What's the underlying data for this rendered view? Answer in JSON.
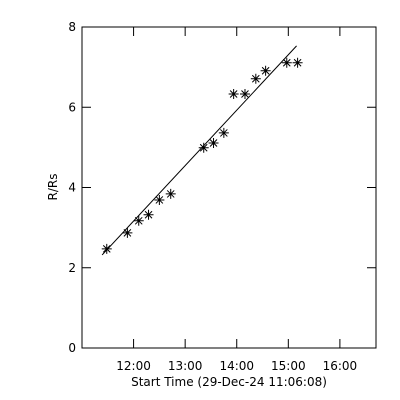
{
  "chart_data": {
    "type": "scatter",
    "x_label": "Start Time (29-Dec-24 11:06:08)",
    "y_label": "R/Rs",
    "x": [
      11.48,
      11.88,
      12.1,
      12.29,
      12.5,
      12.72,
      13.36,
      13.55,
      13.75,
      13.94,
      14.16,
      14.37,
      14.56,
      14.97,
      15.18
    ],
    "values": [
      2.47,
      2.87,
      3.17,
      3.32,
      3.69,
      3.84,
      4.99,
      5.11,
      5.36,
      6.33,
      6.33,
      6.71,
      6.91,
      7.11,
      7.11
    ],
    "color": "#000000",
    "fit": {
      "x": [
        11.39,
        15.16
      ],
      "values": [
        2.32,
        7.53
      ]
    },
    "xlim": [
      11.0,
      16.7
    ],
    "ylim": [
      0,
      8
    ],
    "xticks": [
      {
        "value": 12,
        "label": "12:00"
      },
      {
        "value": 13,
        "label": "13:00"
      },
      {
        "value": 14,
        "label": "14:00"
      },
      {
        "value": 15,
        "label": "15:00"
      },
      {
        "value": 16,
        "label": "16:00"
      }
    ],
    "yticks": [
      0,
      2,
      4,
      6,
      8
    ]
  }
}
